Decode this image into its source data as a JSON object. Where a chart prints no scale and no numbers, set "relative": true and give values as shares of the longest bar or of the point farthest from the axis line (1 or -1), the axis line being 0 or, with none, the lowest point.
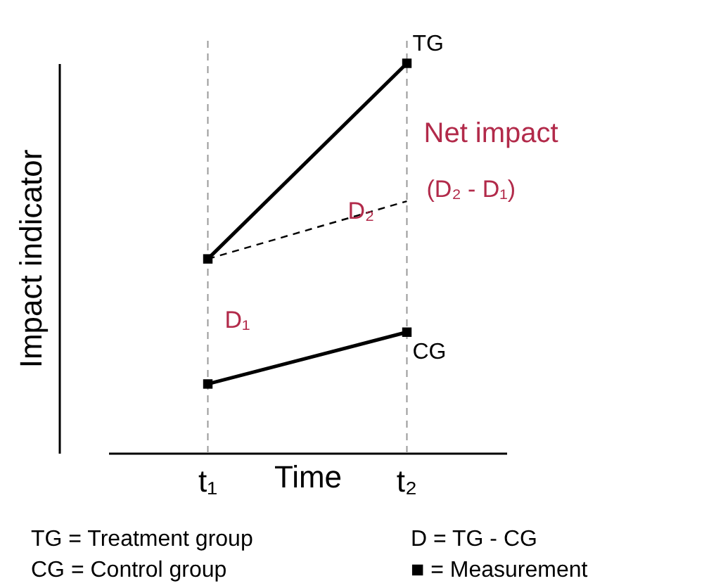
{
  "chart_data": {
    "type": "line",
    "relative": true,
    "xlabel": "Time",
    "ylabel": "Impact indicator",
    "categories": [
      "t₁",
      "t₂"
    ],
    "grid": false,
    "marker": "square",
    "series": [
      {
        "name": "TG",
        "color": "#000000",
        "values": [
          0.498,
          1
        ]
      },
      {
        "name": "CG",
        "color": "#000000",
        "values": [
          0.177,
          0.31
        ]
      },
      {
        "color": "#000000",
        "values": [
          0.498,
          0.646
        ],
        "line_style": "dashed",
        "marker": "none"
      }
    ],
    "ref_lines": [
      {
        "axis": "x",
        "value": "t₁",
        "color": "#999999",
        "line_style": "dashed"
      },
      {
        "axis": "x",
        "value": "t₂",
        "color": "#999999",
        "line_style": "dashed"
      }
    ],
    "annotations": [
      {
        "text": "D₁",
        "x": "t₁",
        "y": 0.34
      },
      {
        "text": "D₂",
        "x": "t₂",
        "y": 0.62
      },
      {
        "text": "Net impact",
        "x": "t₂",
        "y": 0.82
      },
      {
        "text": "(D₂ - D₁)",
        "x": "t₂",
        "y": 0.675
      },
      "TG = Treatment group",
      "CG = Control group",
      "D = TG - CG",
      "■ = Measurement"
    ]
  }
}
